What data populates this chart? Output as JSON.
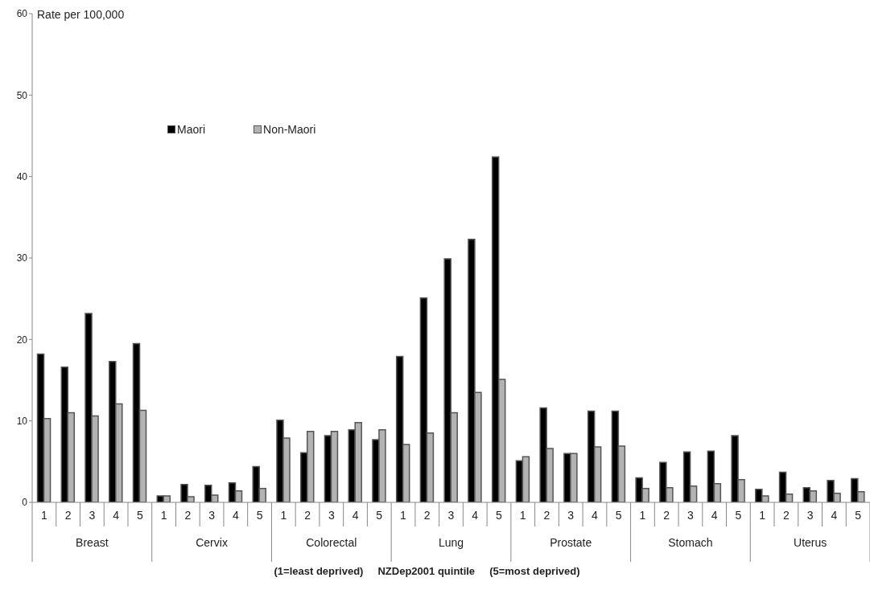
{
  "chart_data": {
    "type": "bar",
    "ylabel": "Rate per 100,000",
    "xlabel": "(1=least deprived)     NZDep2001 quintile     (5=most deprived)",
    "categories": [
      "1",
      "2",
      "3",
      "4",
      "5",
      "1",
      "2",
      "3",
      "4",
      "5",
      "1",
      "2",
      "3",
      "4",
      "5",
      "1",
      "2",
      "3",
      "4",
      "5",
      "1",
      "2",
      "3",
      "4",
      "5",
      "1",
      "2",
      "3",
      "4",
      "5",
      "1",
      "2",
      "3",
      "4",
      "5"
    ],
    "annotations": [
      "Breast",
      "Cervix",
      "Colorectal",
      "Lung",
      "Prostate",
      "Stomach",
      "Uterus"
    ],
    "series": [
      {
        "name": "Maori",
        "color": "#000000",
        "values": [
          18.2,
          16.6,
          23.2,
          17.3,
          19.5,
          0.8,
          2.2,
          2.1,
          2.4,
          4.4,
          10.1,
          6.1,
          8.2,
          8.9,
          7.7,
          17.9,
          25.1,
          29.9,
          32.3,
          42.4,
          5.1,
          11.6,
          6.0,
          11.2,
          11.2,
          3.0,
          4.9,
          6.2,
          6.3,
          8.2,
          1.6,
          3.7,
          1.8,
          2.7,
          2.9
        ]
      },
      {
        "name": "Non-Maori",
        "color": "#b3b3b3",
        "values": [
          10.3,
          11.0,
          10.6,
          12.1,
          11.3,
          0.8,
          0.7,
          0.9,
          1.4,
          1.7,
          7.9,
          8.7,
          8.7,
          9.8,
          8.9,
          7.1,
          8.5,
          11.0,
          13.5,
          15.1,
          5.6,
          6.6,
          6.0,
          6.8,
          6.9,
          1.7,
          1.8,
          2.0,
          2.3,
          2.8,
          0.8,
          1.0,
          1.4,
          1.1,
          1.3
        ]
      }
    ],
    "ylim": [
      0,
      60
    ],
    "yticks": [
      0,
      10,
      20,
      30,
      40,
      50,
      60
    ],
    "grid": false,
    "legend": "top left"
  }
}
